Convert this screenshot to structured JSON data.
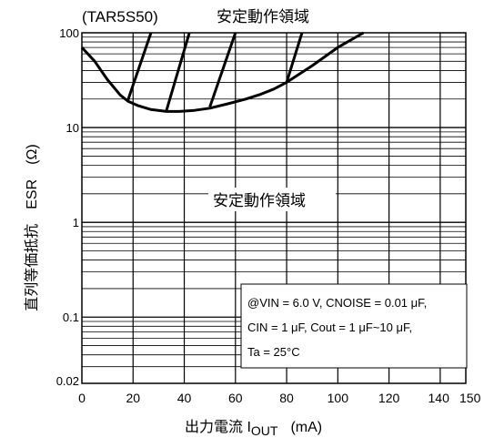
{
  "chart_data": {
    "type": "line",
    "title_left": "(TAR5S50)",
    "title_right": "安定動作領域",
    "xlabel_main": "出力電流 I",
    "xlabel_sub": "OUT",
    "xlabel_unit": "(mA)",
    "ylabel": "直列等価抵抗　ESR　(Ω)",
    "region_label": "安定動作領域",
    "x_range": [
      0,
      150
    ],
    "y_range": [
      0.02,
      100
    ],
    "y_scale": "log",
    "x_ticks": [
      "0",
      "20",
      "40",
      "60",
      "80",
      "100",
      "120",
      "140",
      "150"
    ],
    "x_tick_values": [
      0,
      20,
      40,
      60,
      80,
      100,
      120,
      140,
      150
    ],
    "y_ticks": [
      "100",
      "10",
      "1",
      "0.1",
      "0.02"
    ],
    "y_tick_values": [
      100,
      10,
      1,
      0.1,
      0.02
    ],
    "boundary_curve": {
      "x": [
        0,
        5,
        10,
        15,
        18,
        22,
        27,
        33,
        38,
        44,
        50,
        57,
        64,
        70,
        75,
        80,
        90,
        100,
        110
      ],
      "y": [
        70,
        50,
        32,
        22,
        19,
        17,
        15.5,
        14.8,
        14.8,
        15.2,
        16,
        17.8,
        20,
        22.5,
        25.5,
        30,
        45,
        70,
        100
      ]
    },
    "hatch_lines": [
      {
        "x": [
          18,
          27
        ],
        "y": [
          19.5,
          100
        ]
      },
      {
        "x": [
          33,
          42
        ],
        "y": [
          15,
          100
        ]
      },
      {
        "x": [
          50,
          60
        ],
        "y": [
          16.5,
          100
        ]
      },
      {
        "x": [
          80,
          86
        ],
        "y": [
          30,
          100
        ]
      }
    ],
    "annotation_lines": [
      "@VIN = 6.0 V, CNOISE = 0.01 μF,",
      "CIN = 1 μF, Cout = 1 μF~10 μF,",
      "Ta = 25°C"
    ]
  }
}
